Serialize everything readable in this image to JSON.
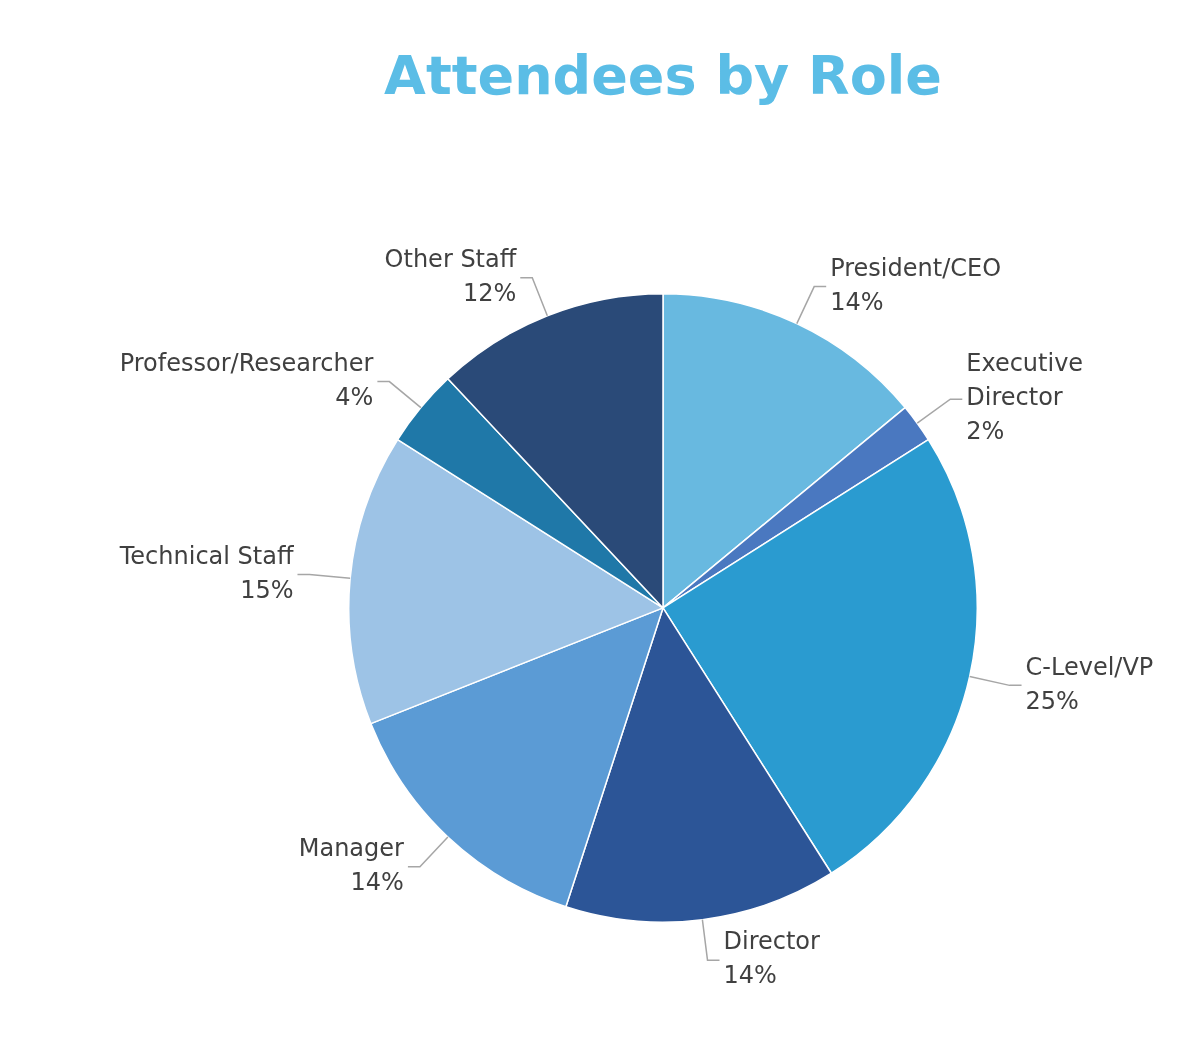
{
  "chart_data": {
    "type": "pie",
    "title": "Attendees by Role",
    "categories": [
      "President/CEO",
      "Executive Director",
      "C-Level/VP",
      "Director",
      "Manager",
      "Technical Staff",
      "Professor/Researcher",
      "Other Staff"
    ],
    "values": [
      14,
      2,
      25,
      14,
      14,
      15,
      4,
      12
    ],
    "value_labels": [
      "14%",
      "2%",
      "25%",
      "14%",
      "14%",
      "15%",
      "4%",
      "12%"
    ],
    "colors": [
      "#68b9e0",
      "#4a78c0",
      "#2a9bd0",
      "#2c5597",
      "#5b9bd5",
      "#9dc3e6",
      "#1f78a8",
      "#2a4a78"
    ],
    "legend": false
  }
}
